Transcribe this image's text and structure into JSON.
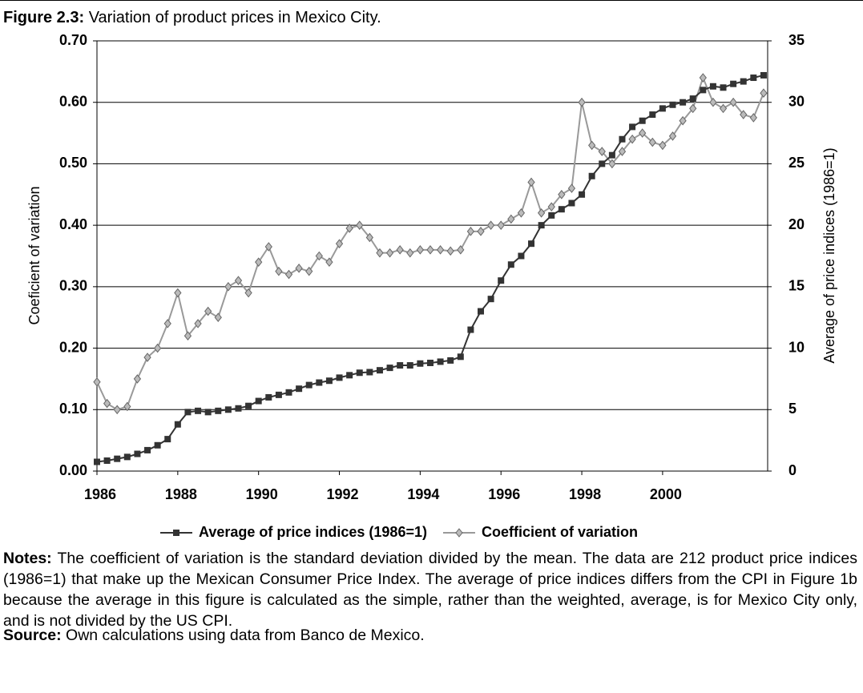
{
  "chart_data": {
    "type": "line",
    "title_label": "Figure 2.3:",
    "title": "Variation of product prices in Mexico City.",
    "ylabel": "Coeficient of variation",
    "y2label": "Average of price indices (1986=1)",
    "x": [
      1986,
      1986.25,
      1986.5,
      1986.75,
      1987,
      1987.25,
      1987.5,
      1987.75,
      1988,
      1988.25,
      1988.5,
      1988.75,
      1989,
      1989.25,
      1989.5,
      1989.75,
      1990,
      1990.25,
      1990.5,
      1990.75,
      1991,
      1991.25,
      1991.5,
      1991.75,
      1992,
      1992.25,
      1992.5,
      1992.75,
      1993,
      1993.25,
      1993.5,
      1993.75,
      1994,
      1994.25,
      1994.5,
      1994.75,
      1995,
      1995.25,
      1995.5,
      1995.75,
      1996,
      1996.25,
      1996.5,
      1996.75,
      1997,
      1997.25,
      1997.5,
      1997.75,
      1998,
      1998.25,
      1998.5,
      1998.75,
      1999,
      1999.25,
      1999.5,
      1999.75,
      2000,
      2000.25,
      2000.5,
      2000.75,
      2001,
      2001.25,
      2001.5,
      2001.75,
      2002,
      2002.25,
      2002.5
    ],
    "series": [
      {
        "name": "Average of price indices (1986=1)",
        "color": "#333333",
        "marker": "square",
        "axis": "y2",
        "values": [
          0.75,
          0.85,
          1.0,
          1.15,
          1.4,
          1.7,
          2.1,
          2.6,
          3.8,
          4.8,
          4.9,
          4.8,
          4.9,
          5.0,
          5.1,
          5.3,
          5.7,
          6.0,
          6.2,
          6.4,
          6.7,
          7.0,
          7.2,
          7.35,
          7.6,
          7.8,
          8.0,
          8.05,
          8.2,
          8.4,
          8.6,
          8.6,
          8.75,
          8.8,
          8.9,
          9.0,
          9.3,
          11.5,
          13.0,
          14.0,
          15.5,
          16.8,
          17.5,
          18.5,
          20.0,
          20.8,
          21.3,
          21.8,
          22.5,
          24.0,
          25.0,
          25.7,
          27.0,
          28.0,
          28.5,
          29.0,
          29.5,
          29.8,
          30.0,
          30.3,
          31.0,
          31.3,
          31.2,
          31.5,
          31.7,
          32.0,
          32.2
        ]
      },
      {
        "name": "Coefficient of variation",
        "color": "#999999",
        "marker": "diamond",
        "values": [
          0.145,
          0.11,
          0.1,
          0.105,
          0.15,
          0.185,
          0.2,
          0.24,
          0.29,
          0.22,
          0.24,
          0.26,
          0.25,
          0.3,
          0.31,
          0.29,
          0.34,
          0.365,
          0.325,
          0.32,
          0.33,
          0.325,
          0.35,
          0.34,
          0.37,
          0.395,
          0.4,
          0.38,
          0.355,
          0.355,
          0.36,
          0.355,
          0.36,
          0.36,
          0.36,
          0.358,
          0.36,
          0.39,
          0.39,
          0.4,
          0.4,
          0.41,
          0.42,
          0.47,
          0.42,
          0.43,
          0.45,
          0.46,
          0.6,
          0.53,
          0.52,
          0.5,
          0.52,
          0.54,
          0.55,
          0.535,
          0.53,
          0.545,
          0.57,
          0.59,
          0.64,
          0.6,
          0.59,
          0.6,
          0.58,
          0.575,
          0.615
        ]
      }
    ],
    "xlim": [
      1986,
      2002.6
    ],
    "xticks": [
      1986,
      1988,
      1990,
      1992,
      1994,
      1996,
      1998,
      2000
    ],
    "ylim": [
      0,
      0.7
    ],
    "yticks": [
      {
        "value": 0,
        "label": "0.00"
      },
      {
        "value": 0.1,
        "label": "0.10"
      },
      {
        "value": 0.2,
        "label": "0.20"
      },
      {
        "value": 0.3,
        "label": "0.30"
      },
      {
        "value": 0.4,
        "label": "0.40"
      },
      {
        "value": 0.5,
        "label": "0.50"
      },
      {
        "value": 0.6,
        "label": "0.60"
      },
      {
        "value": 0.7,
        "label": "0.70"
      }
    ],
    "y2lim": [
      0,
      35
    ],
    "y2ticks": [
      0,
      5,
      10,
      15,
      20,
      25,
      30,
      35
    ],
    "grid": true,
    "legend": "bottom"
  },
  "notes_label": "Notes:",
  "notes": "The coefficient of variation is the standard deviation divided by the mean. The data are 212 product price indices (1986=1) that make up the Mexican Consumer Price Index. The average of price indices differs from the CPI in Figure 1b because the average in this figure is calculated as the simple, rather than the weighted, average, is for Mexico City only, and is not divided by the US CPI.",
  "source_label": "Source:",
  "source": "Own calculations using data from Banco de Mexico."
}
